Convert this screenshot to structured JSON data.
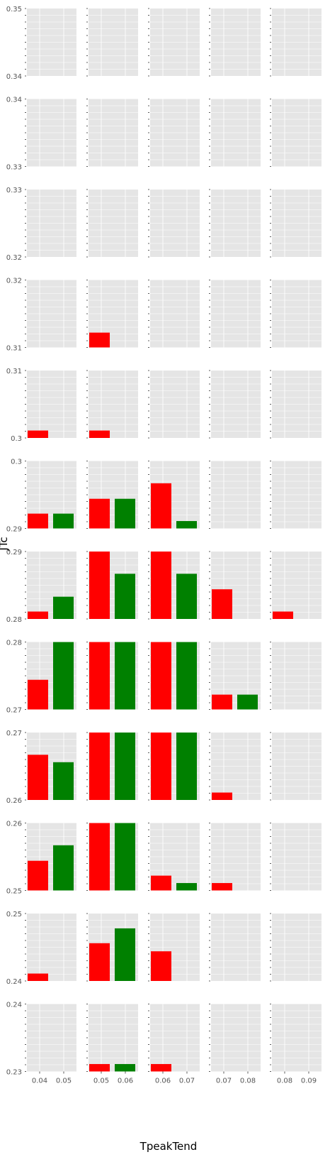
{
  "chart_data": {
    "type": "bar",
    "layout": "facet grid, 12 rows x 5 columns",
    "xlabel": "TpeakTend",
    "ylabel": "JTc",
    "grid": true,
    "panel_background": "#e5e5e5",
    "colors": {
      "red_series": "#ff0000",
      "green_series": "#008000"
    },
    "columns": [
      {
        "tick_labels": [
          "0.04",
          "0.05"
        ]
      },
      {
        "tick_labels": [
          "0.05",
          "0.06"
        ]
      },
      {
        "tick_labels": [
          "0.06",
          "0.07"
        ]
      },
      {
        "tick_labels": [
          "0.07",
          "0.08"
        ]
      },
      {
        "tick_labels": [
          "0.08",
          "0.09"
        ]
      }
    ],
    "rows": [
      {
        "ylim": [
          0.34,
          0.35
        ],
        "tick_labels": [
          "0.35",
          "0.34"
        ],
        "bars": []
      },
      {
        "ylim": [
          0.33,
          0.34
        ],
        "tick_labels": [
          "0.34",
          "0.33"
        ],
        "bars": []
      },
      {
        "ylim": [
          0.32,
          0.33
        ],
        "tick_labels": [
          "0.33",
          "0.32"
        ],
        "bars": []
      },
      {
        "ylim": [
          0.31,
          0.32
        ],
        "tick_labels": [
          "0.32",
          "0.31"
        ],
        "bars": [
          {
            "col": 1,
            "pos": 0,
            "color": "red",
            "top": 0.3122
          }
        ]
      },
      {
        "ylim": [
          0.3,
          0.31
        ],
        "tick_labels": [
          "0.31",
          "0.3"
        ],
        "bars": [
          {
            "col": 0,
            "pos": 0,
            "color": "red",
            "top": 0.3011
          },
          {
            "col": 1,
            "pos": 0,
            "color": "red",
            "top": 0.3011
          }
        ]
      },
      {
        "ylim": [
          0.29,
          0.3
        ],
        "tick_labels": [
          "0.3",
          "0.29"
        ],
        "bars": [
          {
            "col": 0,
            "pos": 0,
            "color": "red",
            "top": 0.2922
          },
          {
            "col": 0,
            "pos": 1,
            "color": "green",
            "top": 0.2922
          },
          {
            "col": 1,
            "pos": 0,
            "color": "red",
            "top": 0.2944
          },
          {
            "col": 1,
            "pos": 1,
            "color": "green",
            "top": 0.2944
          },
          {
            "col": 2,
            "pos": 0,
            "color": "red",
            "top": 0.2967
          },
          {
            "col": 2,
            "pos": 1,
            "color": "green",
            "top": 0.2911
          }
        ]
      },
      {
        "ylim": [
          0.28,
          0.29
        ],
        "tick_labels": [
          "0.29",
          "0.28"
        ],
        "bars": [
          {
            "col": 0,
            "pos": 0,
            "color": "red",
            "top": 0.2811
          },
          {
            "col": 0,
            "pos": 1,
            "color": "green",
            "top": 0.2833
          },
          {
            "col": 1,
            "pos": 0,
            "color": "red",
            "top": 0.29
          },
          {
            "col": 1,
            "pos": 1,
            "color": "green",
            "top": 0.2867
          },
          {
            "col": 2,
            "pos": 0,
            "color": "red",
            "top": 0.291
          },
          {
            "col": 2,
            "pos": 1,
            "color": "green",
            "top": 0.2867
          },
          {
            "col": 3,
            "pos": 0,
            "color": "red",
            "top": 0.2844
          },
          {
            "col": 4,
            "pos": 0,
            "color": "red",
            "top": 0.2811
          }
        ]
      },
      {
        "ylim": [
          0.27,
          0.28
        ],
        "tick_labels": [
          "0.28",
          "0.27"
        ],
        "bars": [
          {
            "col": 0,
            "pos": 0,
            "color": "red",
            "top": 0.2744
          },
          {
            "col": 0,
            "pos": 1,
            "color": "green",
            "top": 0.28
          },
          {
            "col": 1,
            "pos": 0,
            "color": "red",
            "top": 0.28
          },
          {
            "col": 1,
            "pos": 1,
            "color": "green",
            "top": 0.28
          },
          {
            "col": 2,
            "pos": 0,
            "color": "red",
            "top": 0.28
          },
          {
            "col": 2,
            "pos": 1,
            "color": "green",
            "top": 0.28
          },
          {
            "col": 3,
            "pos": 0,
            "color": "red",
            "top": 0.2722
          },
          {
            "col": 3,
            "pos": 1,
            "color": "green",
            "top": 0.2722
          }
        ]
      },
      {
        "ylim": [
          0.26,
          0.27
        ],
        "tick_labels": [
          "0.27",
          "0.26"
        ],
        "bars": [
          {
            "col": 0,
            "pos": 0,
            "color": "red",
            "top": 0.2667
          },
          {
            "col": 0,
            "pos": 1,
            "color": "green",
            "top": 0.2656
          },
          {
            "col": 1,
            "pos": 0,
            "color": "red",
            "top": 0.27
          },
          {
            "col": 1,
            "pos": 1,
            "color": "green",
            "top": 0.27
          },
          {
            "col": 2,
            "pos": 0,
            "color": "red",
            "top": 0.27
          },
          {
            "col": 2,
            "pos": 1,
            "color": "green",
            "top": 0.27
          },
          {
            "col": 3,
            "pos": 0,
            "color": "red",
            "top": 0.2611
          }
        ]
      },
      {
        "ylim": [
          0.25,
          0.26
        ],
        "tick_labels": [
          "0.26",
          "0.25"
        ],
        "bars": [
          {
            "col": 0,
            "pos": 0,
            "color": "red",
            "top": 0.2544
          },
          {
            "col": 0,
            "pos": 1,
            "color": "green",
            "top": 0.2567
          },
          {
            "col": 1,
            "pos": 0,
            "color": "red",
            "top": 0.26
          },
          {
            "col": 1,
            "pos": 1,
            "color": "green",
            "top": 0.26
          },
          {
            "col": 2,
            "pos": 0,
            "color": "red",
            "top": 0.2522
          },
          {
            "col": 2,
            "pos": 1,
            "color": "green",
            "top": 0.2511
          },
          {
            "col": 3,
            "pos": 0,
            "color": "red",
            "top": 0.2511
          }
        ]
      },
      {
        "ylim": [
          0.24,
          0.25
        ],
        "tick_labels": [
          "0.25",
          "0.24"
        ],
        "bars": [
          {
            "col": 0,
            "pos": 0,
            "color": "red",
            "top": 0.2411
          },
          {
            "col": 1,
            "pos": 0,
            "color": "red",
            "top": 0.2456
          },
          {
            "col": 1,
            "pos": 1,
            "color": "green",
            "top": 0.2478
          },
          {
            "col": 2,
            "pos": 0,
            "color": "red",
            "top": 0.2444
          }
        ]
      },
      {
        "ylim": [
          0.23,
          0.24
        ],
        "tick_labels": [
          "0.24",
          "0.23"
        ],
        "bars": [
          {
            "col": 1,
            "pos": 0,
            "color": "red",
            "top": 0.2311
          },
          {
            "col": 1,
            "pos": 1,
            "color": "green",
            "top": 0.2311
          },
          {
            "col": 2,
            "pos": 0,
            "color": "red",
            "top": 0.2311
          }
        ]
      }
    ]
  }
}
